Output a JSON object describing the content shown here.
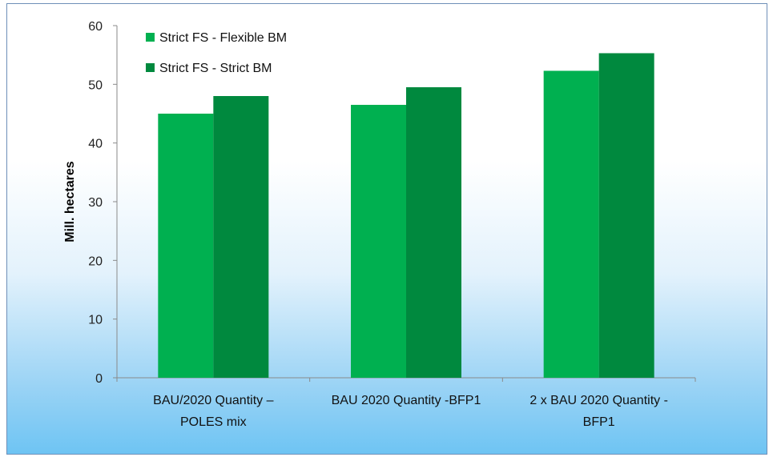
{
  "chart_data": {
    "type": "bar",
    "categories": [
      [
        "BAU/2020 Quantity –",
        "POLES mix"
      ],
      [
        "BAU 2020 Quantity -BFP1"
      ],
      [
        "2 x BAU 2020 Quantity -",
        "BFP1"
      ]
    ],
    "series": [
      {
        "name": "Strict FS - Flexible BM",
        "color": "#00b050",
        "values": [
          45,
          46.5,
          52.3
        ]
      },
      {
        "name": "Strict FS - Strict BM",
        "color": "#00893e",
        "values": [
          48,
          49.5,
          55.3
        ]
      }
    ],
    "ylabel": "Mill. hectares",
    "ylim": [
      0,
      60
    ],
    "yticks": [
      0,
      10,
      20,
      30,
      40,
      50,
      60
    ],
    "grid": false,
    "legend_position": "top-left"
  }
}
